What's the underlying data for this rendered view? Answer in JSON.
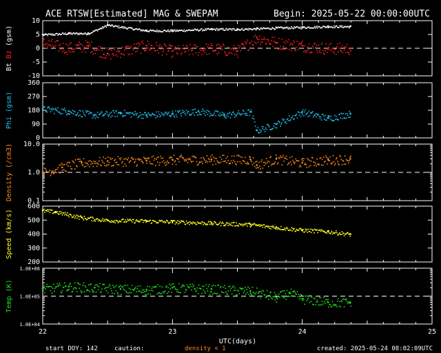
{
  "header": {
    "title": "ACE RTSW[Estimated] MAG & SWEPAM",
    "begin": "Begin: 2025-05-22 00:00:00UTC"
  },
  "footer": {
    "start_doy": "start DOY: 142",
    "caution_label": "caution:",
    "caution_text": "density < 1",
    "created": "created: 2025-05-24 08:02:09UTC"
  },
  "colors": {
    "bt": "#ffffff",
    "bz": "#ff2020",
    "phi": "#20c0f0",
    "density": "#ff8c1a",
    "speed": "#ffff20",
    "temp": "#20e020",
    "axis": "#ffffff",
    "background": "#000000"
  },
  "chart_data": [
    {
      "type": "scatter",
      "ylabel_parts": [
        "Bt",
        "Bz",
        "(gsm)"
      ],
      "ylim": [
        -10,
        10
      ],
      "yticks": [
        "10",
        "5",
        "0",
        "-5",
        "-10"
      ],
      "reference_line": 0,
      "x": [
        22.0,
        22.2,
        22.35,
        22.5,
        22.8,
        23.0,
        23.3,
        23.5,
        23.65,
        23.8,
        24.0,
        24.2,
        24.37
      ],
      "series": [
        {
          "name": "Bt",
          "color": "#ffffff",
          "values": [
            5,
            5.5,
            5.5,
            8.5,
            6.5,
            6.5,
            7,
            7,
            7.2,
            7.5,
            7.7,
            8,
            8
          ]
        },
        {
          "name": "Bz",
          "color": "#ff2020",
          "values": [
            2,
            0,
            1,
            -2,
            1,
            -1,
            0,
            -1,
            4,
            2,
            1,
            0,
            0
          ]
        }
      ]
    },
    {
      "type": "scatter",
      "ylabel": "Phi (gsm)",
      "ylim": [
        0,
        360
      ],
      "yticks": [
        "360",
        "270",
        "180",
        "90",
        "0"
      ],
      "x": [
        22.0,
        22.2,
        22.4,
        22.6,
        22.8,
        23.0,
        23.2,
        23.4,
        23.6,
        23.65,
        23.8,
        24.0,
        24.2,
        24.37
      ],
      "series": [
        {
          "name": "Phi",
          "color": "#20c0f0",
          "values": [
            190,
            175,
            150,
            165,
            150,
            160,
            175,
            150,
            170,
            50,
            90,
            170,
            130,
            160
          ]
        }
      ]
    },
    {
      "type": "scatter",
      "ylabel": "Density (/cm3)",
      "yscale": "log",
      "ylim": [
        0.1,
        10
      ],
      "yticks": [
        "10.0",
        "1.0",
        "0.1"
      ],
      "reference_line": 1,
      "x": [
        22.0,
        22.15,
        22.3,
        22.5,
        22.8,
        23.0,
        23.3,
        23.6,
        23.65,
        23.8,
        24.0,
        24.2,
        24.37
      ],
      "series": [
        {
          "name": "Density",
          "color": "#ff8c1a",
          "values": [
            1.0,
            1.5,
            2.2,
            2.5,
            2.6,
            2.8,
            2.9,
            2.9,
            1.8,
            3.0,
            2.2,
            2.8,
            3.0
          ]
        }
      ]
    },
    {
      "type": "scatter",
      "ylabel": "Speed (km/s)",
      "ylim": [
        200,
        600
      ],
      "yticks": [
        "600",
        "500",
        "400",
        "300",
        "200"
      ],
      "x": [
        22.0,
        22.1,
        22.3,
        22.5,
        22.8,
        23.0,
        23.3,
        23.6,
        23.8,
        24.0,
        24.2,
        24.37
      ],
      "series": [
        {
          "name": "Speed",
          "color": "#ffff20",
          "values": [
            570,
            560,
            520,
            500,
            495,
            490,
            480,
            470,
            450,
            430,
            420,
            400
          ]
        }
      ]
    },
    {
      "type": "scatter",
      "ylabel": "Temp (K)",
      "yscale": "log",
      "ylim": [
        10000,
        1000000
      ],
      "yticks": [
        "1.0E+06",
        "1.0E+05",
        "1.0E+04"
      ],
      "reference_line": 100000,
      "x": [
        22.0,
        22.2,
        22.4,
        22.6,
        22.8,
        23.0,
        23.3,
        23.6,
        23.8,
        23.9,
        24.0,
        24.2,
        24.37
      ],
      "series": [
        {
          "name": "Temp",
          "color": "#20e020",
          "values": [
            180000,
            220000,
            200000,
            180000,
            170000,
            200000,
            180000,
            150000,
            90000,
            130000,
            80000,
            60000,
            60000
          ]
        }
      ]
    }
  ],
  "xaxis": {
    "label": "UTC(days)",
    "xlim": [
      22,
      25
    ],
    "tick_labels": [
      "22",
      "23",
      "24",
      "25"
    ]
  }
}
